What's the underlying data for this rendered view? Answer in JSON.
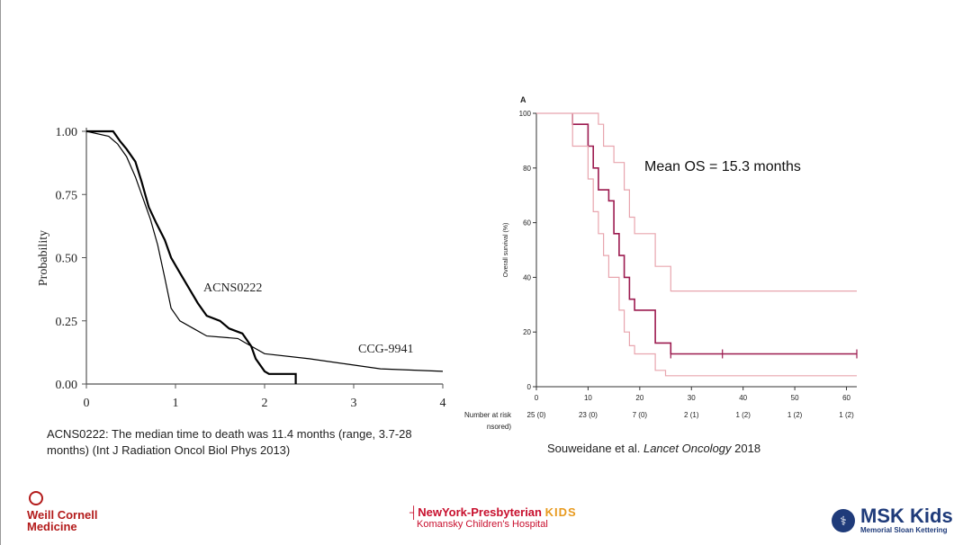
{
  "chart_data": [
    {
      "type": "line",
      "title": "",
      "xlabel": "",
      "ylabel": "Probability",
      "xlim": [
        0,
        4
      ],
      "ylim": [
        0,
        1
      ],
      "x_ticks": [
        "0",
        "1",
        "2",
        "3",
        "4"
      ],
      "y_ticks": [
        "0.00",
        "0.25",
        "0.50",
        "0.75",
        "1.00"
      ],
      "series": [
        {
          "name": "ACNS0222",
          "color": "#000000",
          "points": [
            [
              0,
              1.0
            ],
            [
              0.3,
              1.0
            ],
            [
              0.38,
              0.96
            ],
            [
              0.45,
              0.93
            ],
            [
              0.55,
              0.88
            ],
            [
              0.62,
              0.8
            ],
            [
              0.7,
              0.7
            ],
            [
              0.78,
              0.64
            ],
            [
              0.88,
              0.57
            ],
            [
              0.95,
              0.5
            ],
            [
              1.05,
              0.44
            ],
            [
              1.15,
              0.38
            ],
            [
              1.25,
              0.32
            ],
            [
              1.35,
              0.27
            ],
            [
              1.5,
              0.25
            ],
            [
              1.6,
              0.22
            ],
            [
              1.75,
              0.2
            ],
            [
              1.85,
              0.15
            ],
            [
              1.9,
              0.1
            ],
            [
              2.0,
              0.05
            ],
            [
              2.05,
              0.04
            ],
            [
              2.35,
              0.04
            ],
            [
              2.35,
              0.0
            ]
          ]
        },
        {
          "name": "CCG-9941",
          "color": "#000000",
          "points": [
            [
              0,
              1.0
            ],
            [
              0.25,
              0.98
            ],
            [
              0.35,
              0.95
            ],
            [
              0.45,
              0.9
            ],
            [
              0.55,
              0.82
            ],
            [
              0.62,
              0.75
            ],
            [
              0.72,
              0.65
            ],
            [
              0.8,
              0.55
            ],
            [
              0.88,
              0.42
            ],
            [
              0.95,
              0.3
            ],
            [
              1.05,
              0.25
            ],
            [
              1.2,
              0.22
            ],
            [
              1.35,
              0.19
            ],
            [
              1.7,
              0.18
            ],
            [
              1.85,
              0.15
            ],
            [
              2.0,
              0.12
            ],
            [
              2.5,
              0.1
            ],
            [
              2.9,
              0.08
            ],
            [
              3.3,
              0.06
            ],
            [
              4.0,
              0.05
            ]
          ]
        }
      ],
      "annotations": [
        "ACNS0222",
        "CCG-9941"
      ]
    },
    {
      "type": "line",
      "title": "",
      "panel_label": "A",
      "xlabel": "",
      "ylabel": "Overall survival (%)",
      "xlim": [
        0,
        62
      ],
      "ylim": [
        0,
        100
      ],
      "x_ticks": [
        "0",
        "10",
        "20",
        "30",
        "40",
        "50",
        "60"
      ],
      "y_ticks": [
        "0",
        "20",
        "40",
        "60",
        "80",
        "100"
      ],
      "annotation": "Mean OS = 15.3 months",
      "number_at_risk_label": "Number at risk",
      "censored_label": "nsored)",
      "number_at_risk": [
        "25 (0)",
        "23 (0)",
        "7 (0)",
        "2 (1)",
        "1 (2)",
        "1 (2)",
        "1 (2)"
      ],
      "series": [
        {
          "name": "",
          "role": "estimate",
          "color": "#9c1a4f",
          "points": [
            [
              7,
              100
            ],
            [
              7,
              96
            ],
            [
              10,
              96
            ],
            [
              10,
              88
            ],
            [
              11,
              88
            ],
            [
              11,
              80
            ],
            [
              12,
              80
            ],
            [
              12,
              72
            ],
            [
              14,
              72
            ],
            [
              14,
              68
            ],
            [
              15,
              68
            ],
            [
              15,
              56
            ],
            [
              16,
              56
            ],
            [
              16,
              48
            ],
            [
              17,
              48
            ],
            [
              17,
              40
            ],
            [
              18,
              40
            ],
            [
              18,
              32
            ],
            [
              19,
              32
            ],
            [
              19,
              28
            ],
            [
              23,
              28
            ],
            [
              23,
              16
            ],
            [
              26,
              16
            ],
            [
              26,
              12
            ],
            [
              62,
              12
            ]
          ],
          "censor_marks": [
            26,
            36,
            62
          ]
        },
        {
          "name": "",
          "role": "upper-ci",
          "color": "#e8a5ae",
          "points": [
            [
              0,
              100
            ],
            [
              7,
              100
            ],
            [
              12,
              100
            ],
            [
              12,
              96
            ],
            [
              13,
              96
            ],
            [
              13,
              88
            ],
            [
              15,
              88
            ],
            [
              15,
              82
            ],
            [
              17,
              82
            ],
            [
              17,
              72
            ],
            [
              18,
              72
            ],
            [
              18,
              62
            ],
            [
              19,
              62
            ],
            [
              19,
              56
            ],
            [
              23,
              56
            ],
            [
              23,
              44
            ],
            [
              26,
              44
            ],
            [
              26,
              35
            ],
            [
              62,
              35
            ]
          ]
        },
        {
          "name": "",
          "role": "lower-ci",
          "color": "#e8a5ae",
          "points": [
            [
              7,
              100
            ],
            [
              7,
              88
            ],
            [
              10,
              88
            ],
            [
              10,
              76
            ],
            [
              11,
              76
            ],
            [
              11,
              64
            ],
            [
              12,
              64
            ],
            [
              12,
              56
            ],
            [
              13,
              56
            ],
            [
              13,
              48
            ],
            [
              14,
              48
            ],
            [
              14,
              40
            ],
            [
              16,
              40
            ],
            [
              16,
              28
            ],
            [
              17,
              28
            ],
            [
              17,
              20
            ],
            [
              18,
              20
            ],
            [
              18,
              15
            ],
            [
              19,
              15
            ],
            [
              19,
              12
            ],
            [
              23,
              12
            ],
            [
              23,
              6
            ],
            [
              25,
              6
            ],
            [
              25,
              4
            ],
            [
              62,
              4
            ]
          ]
        }
      ]
    }
  ],
  "captions": {
    "left_line1": "ACNS0222: The median time to death was 11.4 months (range, 3.7-28",
    "left_line2": "months) (Int J Radiation Oncol Biol Phys 2013)",
    "right_authors": "Souweidane et al. ",
    "right_journal": "Lancet Oncology",
    "right_year": " 2018"
  },
  "logos": {
    "wcm_line1": "Weill Cornell",
    "wcm_line2": "Medicine",
    "nyp_main": "NewYork-Presbyterian",
    "nyp_kids": "KIDS",
    "nyp_sub": "Komansky Children's Hospital",
    "msk_title": "MSK Kids",
    "msk_sub": "Memorial Sloan Kettering",
    "colors": {
      "wcm": "#b31b1b",
      "nyp": "#c8102e",
      "nyp_kids": "#e89a1e",
      "msk": "#1f3b7a"
    }
  }
}
